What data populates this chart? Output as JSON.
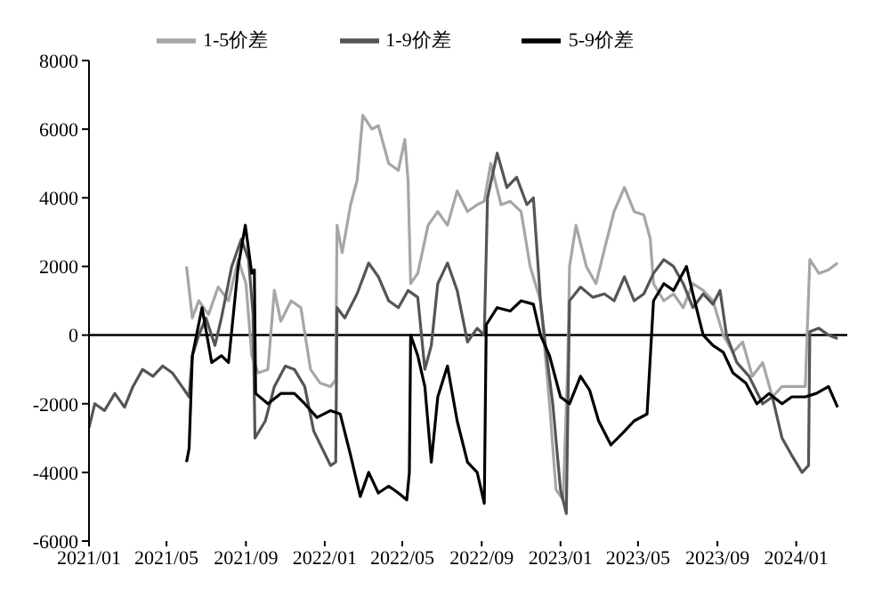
{
  "chart_data": {
    "type": "line",
    "legend": "top",
    "grid": false,
    "marker": "none",
    "line_style": "solid",
    "xlim": [
      "2021-01-01",
      "2024-03-20"
    ],
    "xticks": [
      {
        "value": "2021-01-01",
        "label": "2021/01"
      },
      {
        "value": "2021-05-01",
        "label": "2021/05"
      },
      {
        "value": "2021-09-01",
        "label": "2021/09"
      },
      {
        "value": "2022-01-01",
        "label": "2022/01"
      },
      {
        "value": "2022-05-01",
        "label": "2022/05"
      },
      {
        "value": "2022-09-01",
        "label": "2022/09"
      },
      {
        "value": "2023-01-01",
        "label": "2023/01"
      },
      {
        "value": "2023-05-01",
        "label": "2023/05"
      },
      {
        "value": "2023-09-01",
        "label": "2023/09"
      },
      {
        "value": "2024-01-01",
        "label": "2024/01"
      }
    ],
    "ylim": [
      -6000,
      8000
    ],
    "yticks": [
      -6000,
      -4000,
      -2000,
      0,
      2000,
      4000,
      6000,
      8000
    ],
    "ref_lines": [
      {
        "axis": "y",
        "value": 0,
        "color": "#000000"
      }
    ],
    "series": [
      {
        "name": "1-5价差",
        "color": "#a6a6a6",
        "x": [
          "2021-06-01",
          "2021-06-10",
          "2021-06-20",
          "2021-07-05",
          "2021-07-20",
          "2021-08-05",
          "2021-08-20",
          "2021-09-01",
          "2021-09-10",
          "2021-09-20",
          "2021-10-05",
          "2021-10-15",
          "2021-10-25",
          "2021-11-10",
          "2021-11-25",
          "2021-12-10",
          "2021-12-25",
          "2022-01-10",
          "2022-01-18",
          "2022-01-20",
          "2022-01-28",
          "2022-02-10",
          "2022-02-20",
          "2022-03-01",
          "2022-03-15",
          "2022-03-25",
          "2022-04-10",
          "2022-04-25",
          "2022-05-05",
          "2022-05-10",
          "2022-05-14",
          "2022-05-25",
          "2022-06-10",
          "2022-06-25",
          "2022-07-10",
          "2022-07-25",
          "2022-08-10",
          "2022-08-25",
          "2022-09-05",
          "2022-09-15",
          "2022-10-01",
          "2022-10-15",
          "2022-11-01",
          "2022-11-15",
          "2022-12-01",
          "2022-12-15",
          "2022-12-25",
          "2023-01-05",
          "2023-01-12",
          "2023-01-15",
          "2023-01-25",
          "2023-02-10",
          "2023-02-25",
          "2023-03-10",
          "2023-03-25",
          "2023-04-10",
          "2023-04-25",
          "2023-05-10",
          "2023-05-20",
          "2023-05-25",
          "2023-06-10",
          "2023-06-25",
          "2023-07-10",
          "2023-07-25",
          "2023-08-10",
          "2023-08-25",
          "2023-09-10",
          "2023-09-25",
          "2023-10-10",
          "2023-10-25",
          "2023-11-10",
          "2023-11-25",
          "2023-12-10",
          "2024-01-15",
          "2024-01-22",
          "2024-02-05",
          "2024-02-20",
          "2024-03-05"
        ],
        "values": [
          2000,
          500,
          1000,
          600,
          1400,
          1000,
          2200,
          1500,
          -600,
          -1100,
          -1000,
          1300,
          400,
          1000,
          800,
          -1000,
          -1400,
          -1500,
          -1300,
          3200,
          2400,
          3800,
          4500,
          6400,
          6000,
          6100,
          5000,
          4800,
          5700,
          4500,
          1500,
          1800,
          3200,
          3600,
          3200,
          4200,
          3600,
          3800,
          3900,
          5000,
          3800,
          3900,
          3600,
          2000,
          1000,
          -2000,
          -4500,
          -4800,
          -1000,
          2000,
          3200,
          2000,
          1500,
          2500,
          3600,
          4300,
          3600,
          3500,
          2800,
          1500,
          1000,
          1200,
          800,
          1500,
          1300,
          1000,
          0,
          -500,
          -200,
          -1200,
          -800,
          -1800,
          -1500,
          -1500,
          2200,
          1800,
          1900,
          2100
        ]
      },
      {
        "name": "1-9价差",
        "color": "#555555",
        "x": [
          "2021-01-01",
          "2021-01-10",
          "2021-01-25",
          "2021-02-10",
          "2021-02-25",
          "2021-03-10",
          "2021-03-25",
          "2021-04-10",
          "2021-04-25",
          "2021-05-10",
          "2021-05-25",
          "2021-06-05",
          "2021-06-10",
          "2021-06-20",
          "2021-07-01",
          "2021-07-15",
          "2021-07-25",
          "2021-08-10",
          "2021-08-25",
          "2021-09-05",
          "2021-09-12",
          "2021-09-15",
          "2021-10-01",
          "2021-10-15",
          "2021-11-01",
          "2021-11-15",
          "2021-12-01",
          "2021-12-15",
          "2022-01-10",
          "2022-01-18",
          "2022-01-20",
          "2022-02-01",
          "2022-02-20",
          "2022-03-10",
          "2022-03-25",
          "2022-04-10",
          "2022-04-25",
          "2022-05-10",
          "2022-05-25",
          "2022-06-05",
          "2022-06-15",
          "2022-06-25",
          "2022-07-10",
          "2022-07-25",
          "2022-08-10",
          "2022-08-25",
          "2022-09-05",
          "2022-09-10",
          "2022-09-25",
          "2022-10-10",
          "2022-10-25",
          "2022-11-10",
          "2022-11-20",
          "2022-12-01",
          "2022-12-10",
          "2022-12-20",
          "2023-01-01",
          "2023-01-10",
          "2023-01-15",
          "2023-02-01",
          "2023-02-20",
          "2023-03-10",
          "2023-03-25",
          "2023-04-10",
          "2023-04-25",
          "2023-05-10",
          "2023-05-25",
          "2023-06-10",
          "2023-06-25",
          "2023-07-10",
          "2023-07-25",
          "2023-08-10",
          "2023-08-25",
          "2023-09-05",
          "2023-09-15",
          "2023-10-01",
          "2023-10-20",
          "2023-11-10",
          "2023-11-25",
          "2023-12-10",
          "2023-12-25",
          "2024-01-10",
          "2024-01-20",
          "2024-01-22",
          "2024-02-05",
          "2024-02-20",
          "2024-03-05"
        ],
        "values": [
          -2700,
          -2000,
          -2200,
          -1700,
          -2100,
          -1500,
          -1000,
          -1200,
          -900,
          -1100,
          -1500,
          -1800,
          -600,
          0,
          500,
          -300,
          500,
          2000,
          2800,
          2200,
          600,
          -3000,
          -2500,
          -1500,
          -900,
          -1000,
          -1500,
          -2800,
          -3800,
          -3700,
          800,
          500,
          1200,
          2100,
          1700,
          1000,
          800,
          1300,
          1100,
          -1000,
          -300,
          1500,
          2100,
          1300,
          -200,
          200,
          0,
          4000,
          5300,
          4300,
          4600,
          3800,
          4000,
          1000,
          -500,
          -2000,
          -4500,
          -5200,
          1000,
          1400,
          1100,
          1200,
          1000,
          1700,
          1000,
          1200,
          1800,
          2200,
          2000,
          1500,
          800,
          1200,
          900,
          1300,
          0,
          -800,
          -1200,
          -2000,
          -1800,
          -3000,
          -3500,
          -4000,
          -3800,
          100,
          200,
          0,
          -100
        ]
      },
      {
        "name": "5-9价差",
        "color": "#000000",
        "x": [
          "2021-06-01",
          "2021-06-05",
          "2021-06-10",
          "2021-06-25",
          "2021-07-10",
          "2021-07-25",
          "2021-08-05",
          "2021-08-20",
          "2021-08-31",
          "2021-09-10",
          "2021-09-14",
          "2021-09-16",
          "2021-10-05",
          "2021-10-25",
          "2021-11-15",
          "2021-12-01",
          "2021-12-20",
          "2022-01-10",
          "2022-01-25",
          "2022-02-10",
          "2022-02-25",
          "2022-03-10",
          "2022-03-25",
          "2022-04-10",
          "2022-04-25",
          "2022-05-08",
          "2022-05-12",
          "2022-05-14",
          "2022-05-25",
          "2022-06-05",
          "2022-06-15",
          "2022-06-25",
          "2022-07-10",
          "2022-07-25",
          "2022-08-10",
          "2022-08-25",
          "2022-09-05",
          "2022-09-08",
          "2022-09-25",
          "2022-10-15",
          "2022-11-01",
          "2022-11-20",
          "2022-12-01",
          "2022-12-15",
          "2023-01-01",
          "2023-01-15",
          "2023-02-01",
          "2023-02-15",
          "2023-03-01",
          "2023-03-20",
          "2023-04-10",
          "2023-04-25",
          "2023-05-15",
          "2023-05-25",
          "2023-06-10",
          "2023-06-25",
          "2023-07-15",
          "2023-07-25",
          "2023-08-10",
          "2023-08-25",
          "2023-09-10",
          "2023-09-25",
          "2023-10-15",
          "2023-11-01",
          "2023-11-20",
          "2023-12-10",
          "2023-12-25",
          "2024-01-15",
          "2024-02-01",
          "2024-02-20",
          "2024-03-05"
        ],
        "values": [
          -3700,
          -3300,
          -600,
          800,
          -800,
          -600,
          -800,
          2000,
          3200,
          1800,
          1900,
          -1700,
          -2000,
          -1700,
          -1700,
          -2000,
          -2400,
          -2200,
          -2300,
          -3500,
          -4700,
          -4000,
          -4600,
          -4400,
          -4600,
          -4800,
          -4000,
          0,
          -600,
          -1500,
          -3700,
          -1800,
          -900,
          -2500,
          -3700,
          -4000,
          -4900,
          300,
          800,
          700,
          1000,
          900,
          0,
          -600,
          -1800,
          -2000,
          -1200,
          -1600,
          -2500,
          -3200,
          -2800,
          -2500,
          -2300,
          1000,
          1500,
          1300,
          2000,
          1200,
          0,
          -300,
          -500,
          -1100,
          -1400,
          -2000,
          -1700,
          -2000,
          -1800,
          -1800,
          -1700,
          -1500,
          -2100
        ]
      }
    ]
  }
}
